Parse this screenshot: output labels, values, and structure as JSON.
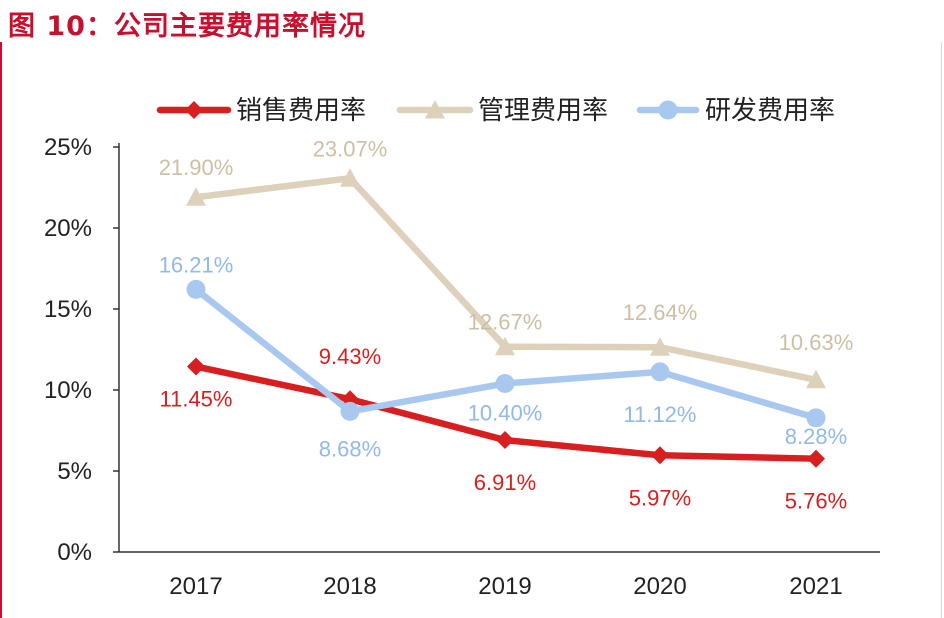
{
  "title": "图 10：公司主要费用率情况",
  "chart_data": {
    "type": "line",
    "title": "",
    "xlabel": "",
    "ylabel": "",
    "categories": [
      "2017",
      "2018",
      "2019",
      "2020",
      "2021"
    ],
    "ylim": [
      0,
      25
    ],
    "yticks": [
      "0%",
      "5%",
      "10%",
      "15%",
      "20%",
      "25%"
    ],
    "grid": false,
    "legend_position": "top",
    "series": [
      {
        "name": "销售费用率",
        "values": [
          11.45,
          9.43,
          6.91,
          5.97,
          5.76
        ],
        "labels": [
          "11.45%",
          "9.43%",
          "6.91%",
          "5.97%",
          "5.76%"
        ],
        "color": "#d81e1e",
        "marker": "diamond"
      },
      {
        "name": "管理费用率",
        "values": [
          21.9,
          23.07,
          12.67,
          12.64,
          10.63
        ],
        "labels": [
          "21.90%",
          "23.07%",
          "12.67%",
          "12.64%",
          "10.63%"
        ],
        "color": "#ddd1bb",
        "marker": "triangle"
      },
      {
        "name": "研发费用率",
        "values": [
          16.21,
          8.68,
          10.4,
          11.12,
          8.28
        ],
        "labels": [
          "16.21%",
          "8.68%",
          "10.40%",
          "11.12%",
          "8.28%"
        ],
        "color": "#a9c8f0",
        "marker": "circle"
      }
    ]
  }
}
